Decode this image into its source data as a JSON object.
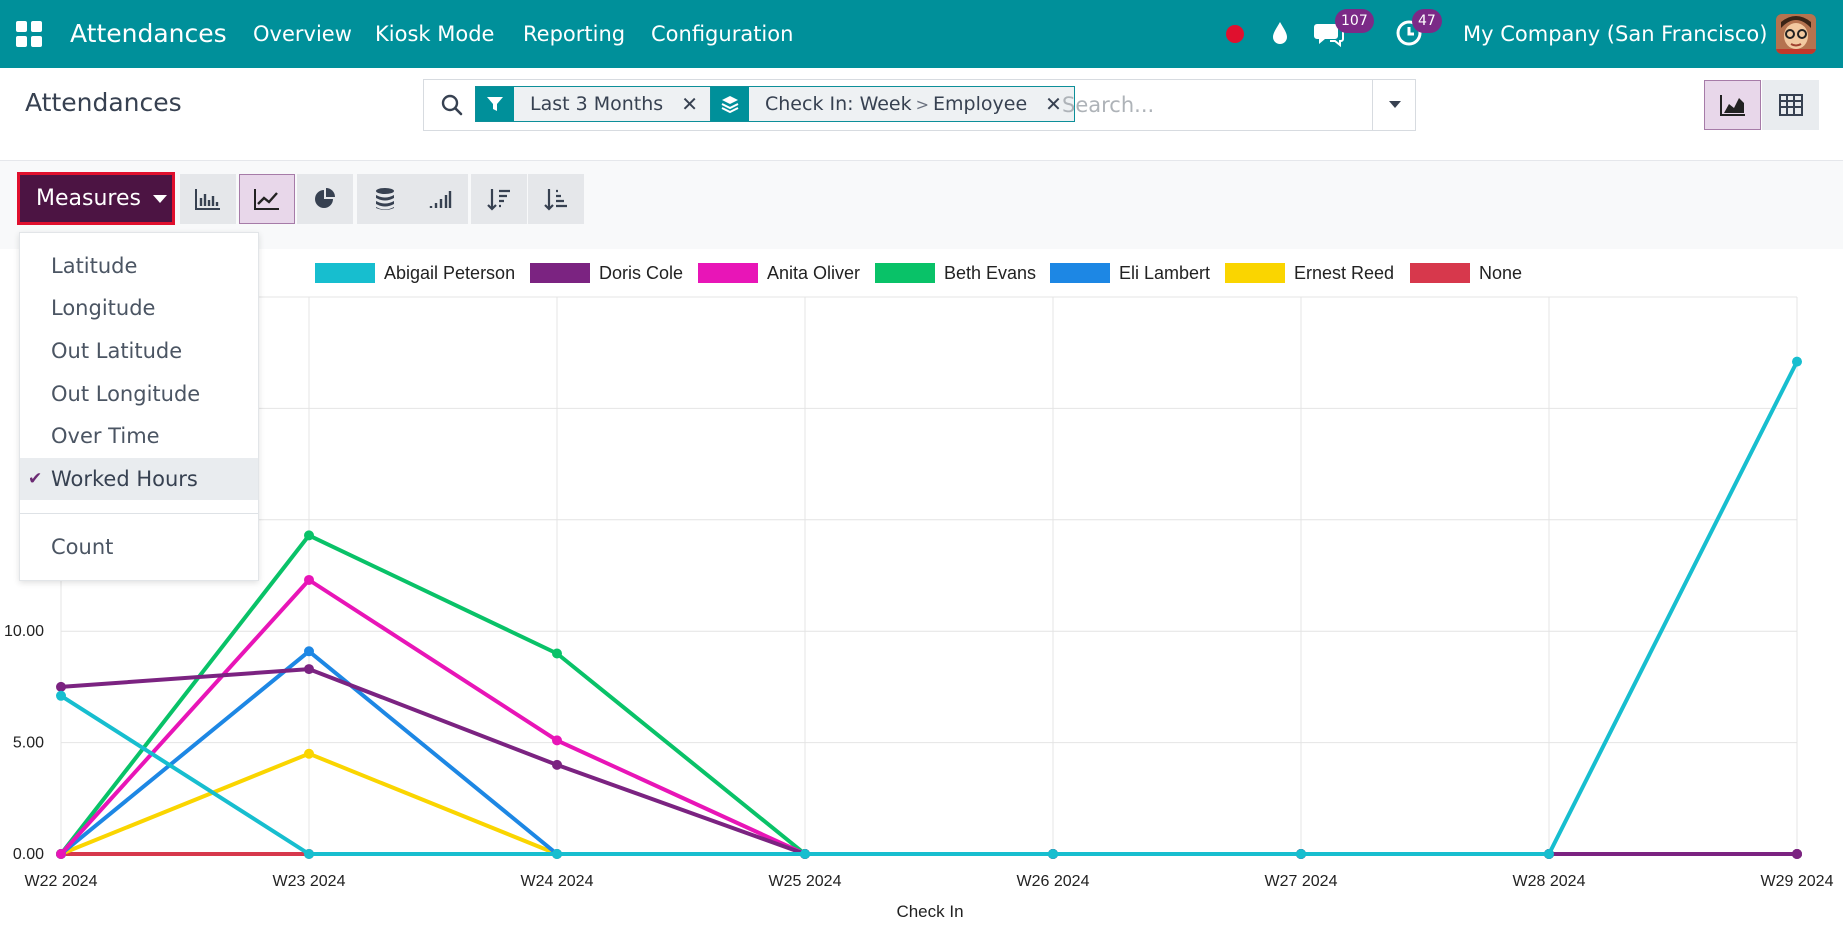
{
  "topbar": {
    "app_name": "Attendances",
    "menu": [
      "Overview",
      "Kiosk Mode",
      "Reporting",
      "Configuration"
    ],
    "chat_badge": "107",
    "activity_badge": "47",
    "company": "My Company (San Francisco)"
  },
  "control": {
    "title": "Attendances",
    "filter_facet": "Last 3 Months",
    "groupby_facet": {
      "first": "Check In: Week",
      "sep": ">",
      "second": "Employee"
    },
    "search_placeholder": "Search..."
  },
  "toolbar": {
    "measures_label": "Measures"
  },
  "measures_menu": {
    "items": [
      "Latitude",
      "Longitude",
      "Out Latitude",
      "Out Longitude",
      "Over Time",
      "Worked Hours"
    ],
    "selected": "Worked Hours",
    "extra": "Count"
  },
  "chart_data": {
    "type": "line",
    "xlabel": "Check In",
    "ylabel": "",
    "x": [
      "W22 2024",
      "W23 2024",
      "W24 2024",
      "W25 2024",
      "W26 2024",
      "W27 2024",
      "W28 2024",
      "W29 2024"
    ],
    "ylim": [
      0,
      25
    ],
    "ytick_labels": [
      "0.00",
      "5.00",
      "10.00",
      "15",
      "20",
      "25"
    ],
    "ytick_values": [
      0,
      5,
      10,
      15,
      20,
      25
    ],
    "legend_position": "top",
    "grid": true,
    "series": [
      {
        "name": "Abigail Peterson",
        "color": "#17becf",
        "values": [
          7.1,
          0,
          0,
          0,
          0,
          0,
          0,
          22.1
        ]
      },
      {
        "name": "Doris Cole",
        "color": "#7b2381",
        "values": [
          7.5,
          8.3,
          4.0,
          0,
          0,
          0,
          0,
          0
        ]
      },
      {
        "name": "Anita Oliver",
        "color": "#e815b7",
        "values": [
          0,
          12.3,
          5.1,
          0,
          0,
          0,
          0,
          0
        ]
      },
      {
        "name": "Beth Evans",
        "color": "#09c268",
        "values": [
          0,
          14.3,
          9.0,
          0,
          0,
          0,
          0,
          0
        ]
      },
      {
        "name": "Eli Lambert",
        "color": "#1d87e4",
        "values": [
          0,
          9.1,
          0,
          0,
          0,
          0,
          0,
          0
        ]
      },
      {
        "name": "Ernest Reed",
        "color": "#fad500",
        "values": [
          0,
          4.5,
          0,
          0,
          0,
          0,
          0,
          0
        ]
      },
      {
        "name": "None",
        "color": "#d7384c",
        "values": [
          0,
          0,
          0,
          0,
          0,
          0,
          0,
          0
        ]
      }
    ]
  }
}
